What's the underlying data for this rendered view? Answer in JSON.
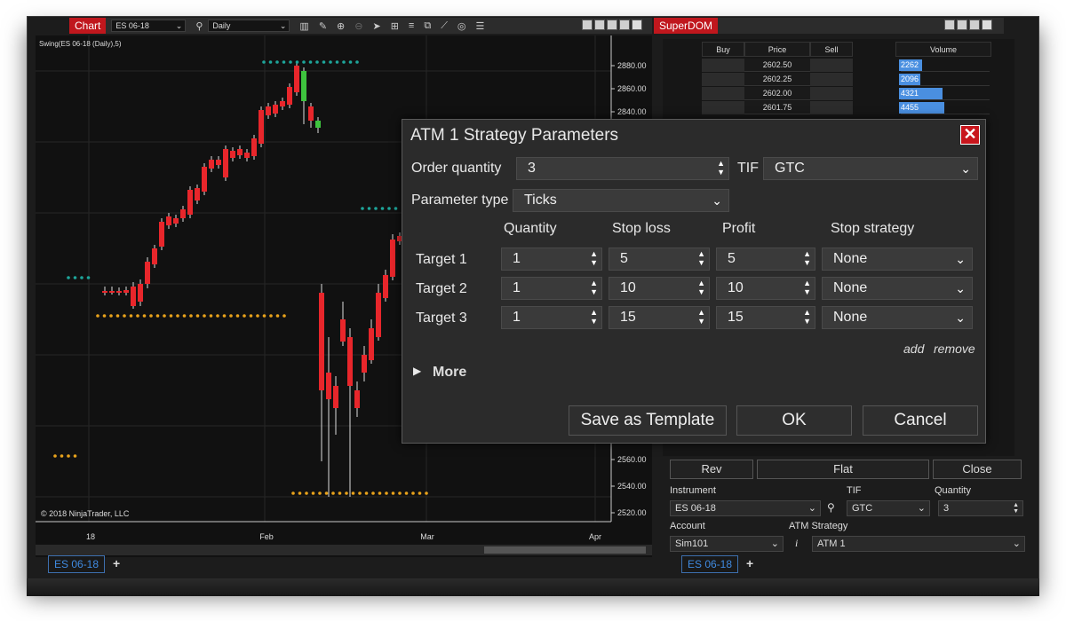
{
  "chart_window": {
    "tab_label": "Chart",
    "instrument": "ES 06-18",
    "interval": "Daily",
    "indicator_label": "Swing(ES 06-18 (Daily),5)",
    "copyright": "© 2018 NinjaTrader, LLC",
    "bottom_tab": "ES 06-18"
  },
  "chart_data": {
    "type": "candlestick",
    "x_tick_labels": [
      "18",
      "Feb",
      "Mar",
      "Apr"
    ],
    "y_tick_labels": [
      "2880.00",
      "2860.00",
      "2840.00",
      "2560.00",
      "2540.00",
      "2520.00"
    ]
  },
  "superdom": {
    "tab_label": "SuperDOM",
    "headers": {
      "buy": "Buy",
      "price": "Price",
      "sell": "Sell",
      "volume": "Volume"
    },
    "rows": [
      {
        "price": "2602.50",
        "volume": "2262",
        "bar": 0.25
      },
      {
        "price": "2602.25",
        "volume": "2096",
        "bar": 0.23
      },
      {
        "price": "2602.00",
        "volume": "4321",
        "bar": 0.47
      },
      {
        "price": "2601.75",
        "volume": "4455",
        "bar": 0.49
      }
    ],
    "rev_label": "Rev",
    "flat_label": "Flat",
    "close_label": "Close",
    "instrument_label": "Instrument",
    "instrument_value": "ES 06-18",
    "tif_label": "TIF",
    "tif_value": "GTC",
    "quantity_label": "Quantity",
    "quantity_value": "3",
    "account_label": "Account",
    "account_value": "Sim101",
    "atm_label": "ATM Strategy",
    "atm_value": "ATM 1",
    "bottom_tab": "ES 06-18"
  },
  "atm_dialog": {
    "title": "ATM 1 Strategy Parameters",
    "order_quantity_label": "Order quantity",
    "order_quantity_value": "3",
    "tif_label": "TIF",
    "tif_value": "GTC",
    "parameter_type_label": "Parameter type",
    "parameter_type_value": "Ticks",
    "headers": {
      "quantity": "Quantity",
      "stop_loss": "Stop loss",
      "profit": "Profit",
      "stop_strategy": "Stop strategy"
    },
    "targets": [
      {
        "label": "Target 1",
        "quantity": "1",
        "stop_loss": "5",
        "profit": "5",
        "stop_strategy": "None"
      },
      {
        "label": "Target 2",
        "quantity": "1",
        "stop_loss": "10",
        "profit": "10",
        "stop_strategy": "None"
      },
      {
        "label": "Target 3",
        "quantity": "1",
        "stop_loss": "15",
        "profit": "15",
        "stop_strategy": "None"
      }
    ],
    "add_label": "add",
    "remove_label": "remove",
    "more_label": "More",
    "save_template_label": "Save as Template",
    "ok_label": "OK",
    "cancel_label": "Cancel"
  },
  "colors": {
    "accent": "#c0171d",
    "bull": "#3ec33e",
    "bear": "#e8262b",
    "swing_high": "#1ea59a",
    "swing_low": "#e8a21b",
    "volume_bar": "#4a8fe0"
  }
}
